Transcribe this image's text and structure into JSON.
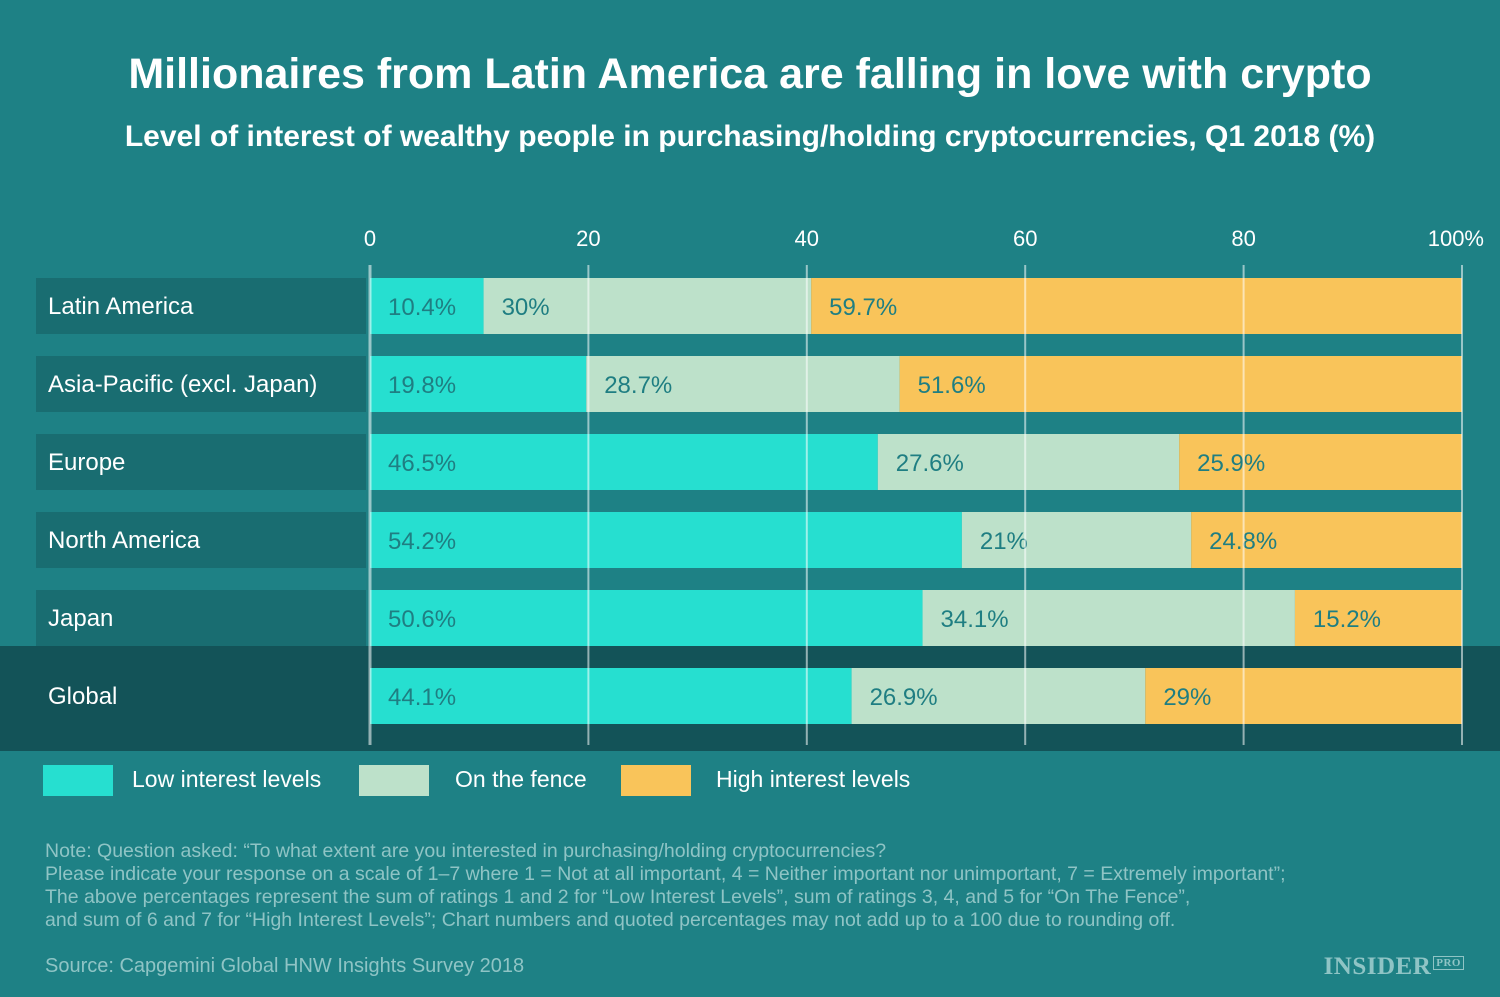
{
  "title": "Millionaires from Latin America are falling in love with crypto",
  "subtitle": "Level of interest of wealthy people in purchasing/holding cryptocurrencies, Q1 2018 (%)",
  "colors": {
    "background": "#1e8185",
    "low": "#26dfd0",
    "fence": "#bde1ca",
    "high": "#f9c45a",
    "label_box": "#196d71",
    "global_band": "#135358",
    "value_text": "#1f7e82"
  },
  "chart_data": {
    "type": "bar",
    "orientation": "horizontal",
    "stacked": true,
    "categories": [
      "Latin America",
      "Asia-Pacific (excl. Japan)",
      "Europe",
      "North America",
      "Japan",
      "Global"
    ],
    "series": [
      {
        "name": "Low interest levels",
        "values": [
          10.4,
          19.8,
          46.5,
          54.2,
          50.6,
          44.1
        ],
        "labels": [
          "10.4%",
          "19.8%",
          "46.5%",
          "54.2%",
          "50.6%",
          "44.1%"
        ]
      },
      {
        "name": "On the fence",
        "values": [
          30,
          28.7,
          27.6,
          21,
          34.1,
          26.9
        ],
        "labels": [
          "30%",
          "28.7%",
          "27.6%",
          "21%",
          "34.1%",
          "26.9%"
        ]
      },
      {
        "name": "High interest levels",
        "values": [
          59.7,
          51.6,
          25.9,
          24.8,
          15.2,
          29
        ],
        "labels": [
          "59.7%",
          "51.6%",
          "25.9%",
          "24.8%",
          "15.2%",
          "29%"
        ]
      }
    ],
    "xlim": [
      0,
      100
    ],
    "ticks": [
      0,
      20,
      40,
      60,
      80,
      100
    ],
    "tick_labels": [
      "0",
      "20",
      "40",
      "60",
      "80",
      "100%"
    ],
    "grid": true,
    "legend_position": "bottom-left"
  },
  "legend": [
    {
      "label": "Low interest levels",
      "color": "#26dfd0"
    },
    {
      "label": "On the fence",
      "color": "#bde1ca"
    },
    {
      "label": "High interest levels",
      "color": "#f9c45a"
    }
  ],
  "note_lines": [
    "Note: Question asked: “To what extent are you interested in purchasing/holding cryptocurrencies?",
    "Please indicate your response on a scale of 1–7 where 1 = Not at all important, 4 = Neither important nor unimportant, 7 = Extremely important”;",
    "The above percentages represent the sum of ratings 1 and 2 for “Low Interest Levels”, sum of ratings 3, 4, and 5 for “On The Fence”,",
    "and sum of 6 and 7 for “High Interest Levels”; Chart numbers and quoted percentages may not add up to a 100 due to rounding off."
  ],
  "source": "Source: Capgemini Global HNW Insights Survey 2018",
  "brand": {
    "name": "INSIDER",
    "badge": "PRO"
  }
}
